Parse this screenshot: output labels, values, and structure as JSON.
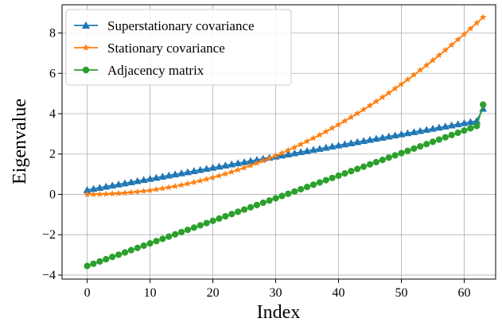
{
  "chart_data": {
    "type": "line",
    "xlabel": "Index",
    "ylabel": "Eigenvalue",
    "xlim": [
      -4,
      65
    ],
    "ylim": [
      -4.2,
      9.4
    ],
    "x_ticks": [
      0,
      10,
      20,
      30,
      40,
      50,
      60
    ],
    "y_ticks": [
      -4,
      -2,
      0,
      2,
      4,
      6,
      8
    ],
    "x_tick_labels": [
      "0",
      "10",
      "20",
      "30",
      "40",
      "50",
      "60"
    ],
    "y_tick_labels": [
      "−4",
      "−2",
      "0",
      "2",
      "4",
      "6",
      "8"
    ],
    "grid": true,
    "legend_position": "top-left",
    "series": [
      {
        "name": "Superstationary covariance",
        "color": "#1f77b4",
        "marker": "triangle",
        "y_start": 0.22,
        "y_end": 3.7,
        "y_final": 4.25,
        "curve": "linear"
      },
      {
        "name": "Stationary covariance",
        "color": "#ff7f0e",
        "marker": "star",
        "y_start": 0.0,
        "y_end": 8.78,
        "curve": "quadratic-convex"
      },
      {
        "name": "Adjacency matrix",
        "color": "#2ca02c",
        "marker": "circle",
        "y_start": -3.55,
        "y_end": 3.5,
        "y_final": 4.45,
        "curve": "linear"
      }
    ],
    "n_points": 64
  }
}
